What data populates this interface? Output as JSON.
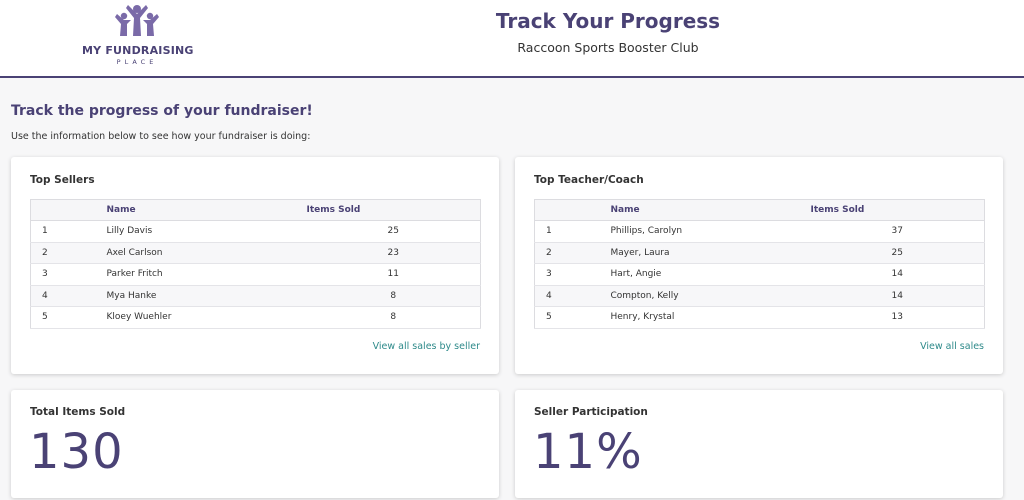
{
  "header": {
    "logo_line1": "MY FUNDRAISING",
    "logo_line2": "PLACE",
    "title": "Track Your Progress",
    "subtitle": "Raccoon Sports Booster Club"
  },
  "intro": {
    "heading": "Track the progress of your fundraiser!",
    "description": "Use the information below to see how your fundraiser is doing:"
  },
  "top_sellers": {
    "title": "Top Sellers",
    "columns": [
      "",
      "Name",
      "Items Sold"
    ],
    "rows": [
      {
        "rank": "1",
        "name": "Lilly Davis",
        "items": "25"
      },
      {
        "rank": "2",
        "name": "Axel Carlson",
        "items": "23"
      },
      {
        "rank": "3",
        "name": "Parker Fritch",
        "items": "11"
      },
      {
        "rank": "4",
        "name": "Mya Hanke",
        "items": "8"
      },
      {
        "rank": "5",
        "name": "Kloey Wuehler",
        "items": "8"
      }
    ],
    "link": "View all sales by seller"
  },
  "top_teacher": {
    "title": "Top Teacher/Coach",
    "columns": [
      "",
      "Name",
      "Items Sold"
    ],
    "rows": [
      {
        "rank": "1",
        "name": "Phillips, Carolyn",
        "items": "37"
      },
      {
        "rank": "2",
        "name": "Mayer, Laura",
        "items": "25"
      },
      {
        "rank": "3",
        "name": "Hart, Angie",
        "items": "14"
      },
      {
        "rank": "4",
        "name": "Compton, Kelly",
        "items": "14"
      },
      {
        "rank": "5",
        "name": "Henry, Krystal",
        "items": "13"
      }
    ],
    "link": "View all sales"
  },
  "total_items": {
    "title": "Total Items Sold",
    "value": "130"
  },
  "participation": {
    "title": "Seller Participation",
    "value": "11%"
  },
  "colors": {
    "brand": "#4a4275",
    "link": "#2e8a8a"
  }
}
